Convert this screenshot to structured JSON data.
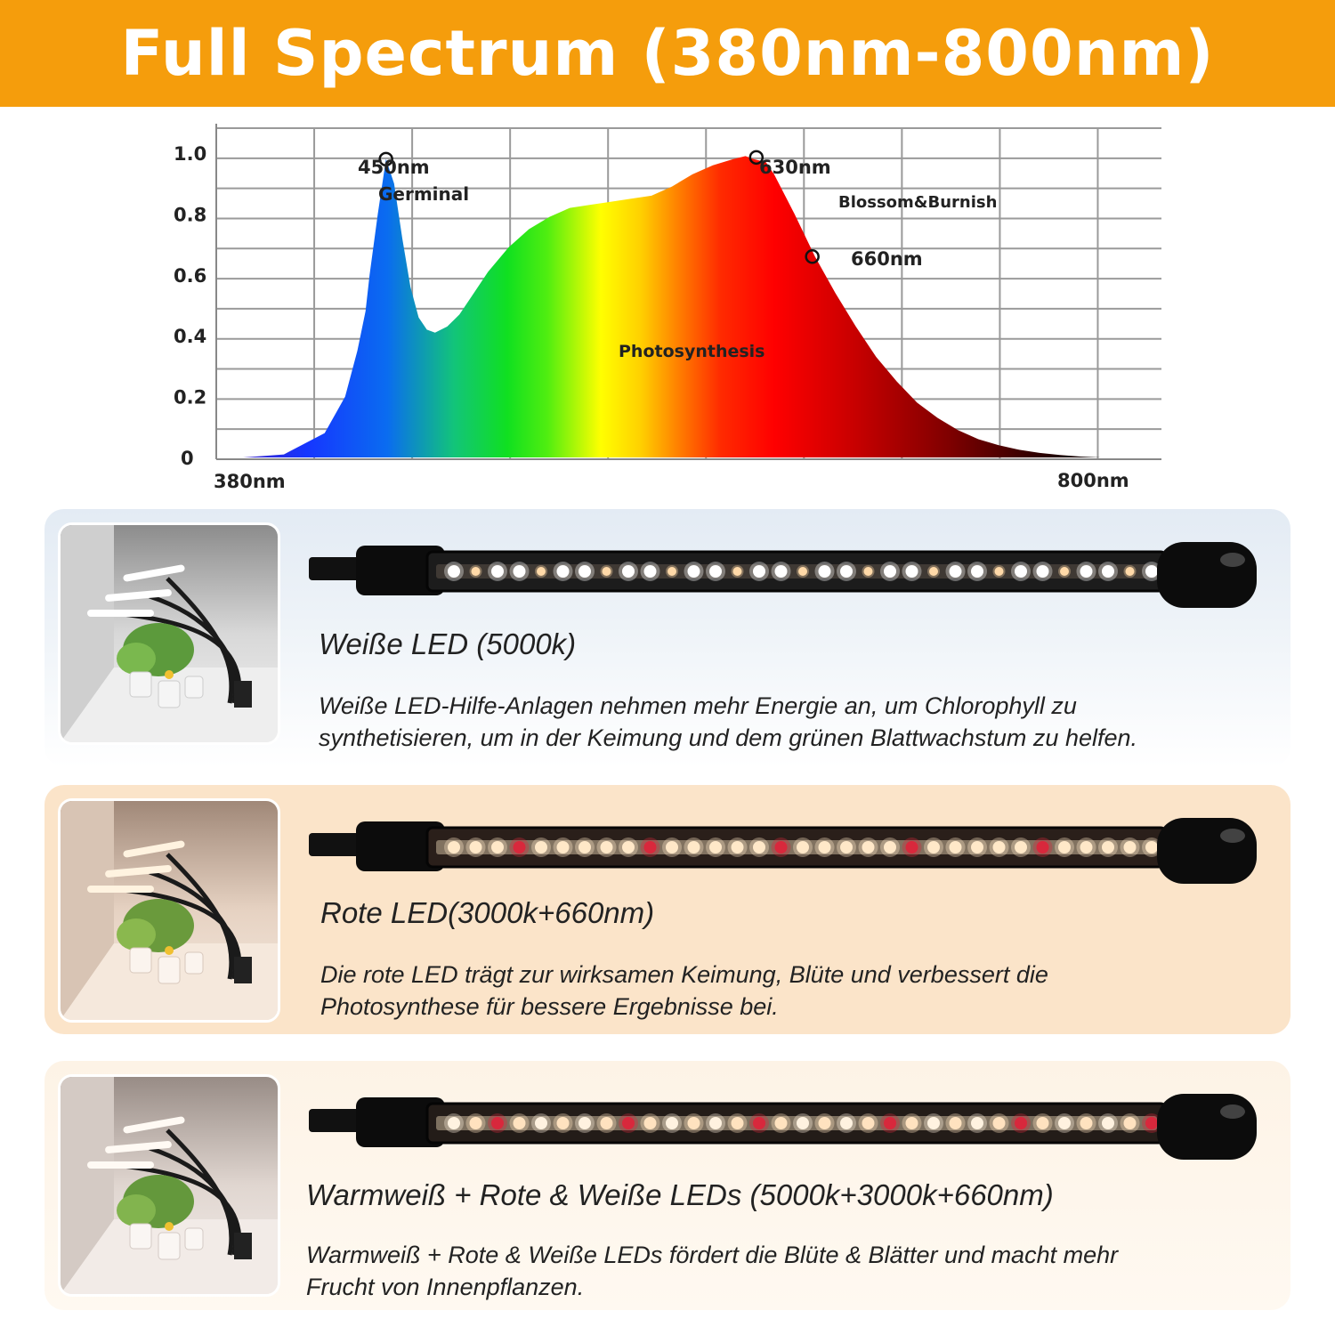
{
  "banner": {
    "title": "Full Spectrum (380nm-800nm)",
    "color": "#f59d0c"
  },
  "chart_data": {
    "type": "area",
    "title": "",
    "xlabel": "",
    "ylabel": "",
    "x_unit": "nm",
    "xlim": [
      380,
      800
    ],
    "ylim": [
      0,
      1.0
    ],
    "grid": true,
    "x_tick_labels": [
      "380nm",
      "800nm"
    ],
    "y_ticks": [
      0,
      0.2,
      0.4,
      0.6,
      0.8,
      1.0
    ],
    "y_tick_labels": [
      "0",
      "0.2",
      "0.4",
      "0.6",
      "0.8",
      "1.0"
    ],
    "series": [
      {
        "x": [
          380,
          400,
          420,
          430,
          436,
          440,
          442,
          446,
          450,
          454,
          458,
          462,
          466,
          470,
          474,
          480,
          486,
          492,
          500,
          510,
          520,
          530,
          540,
          550,
          560,
          570,
          580,
          590,
          600,
          610,
          620,
          626,
          630,
          636,
          640,
          650,
          660,
          670,
          680,
          690,
          700,
          710,
          720,
          730,
          740,
          750,
          760,
          770,
          780,
          790,
          800
        ],
        "y": [
          0.0,
          0.01,
          0.08,
          0.2,
          0.35,
          0.48,
          0.6,
          0.8,
          0.98,
          0.9,
          0.72,
          0.56,
          0.46,
          0.42,
          0.41,
          0.43,
          0.47,
          0.53,
          0.61,
          0.69,
          0.75,
          0.79,
          0.82,
          0.83,
          0.84,
          0.85,
          0.86,
          0.89,
          0.93,
          0.96,
          0.98,
          0.99,
          0.98,
          0.97,
          0.93,
          0.8,
          0.66,
          0.54,
          0.43,
          0.33,
          0.25,
          0.18,
          0.13,
          0.09,
          0.06,
          0.04,
          0.025,
          0.015,
          0.008,
          0.003,
          0.0
        ]
      }
    ],
    "annotations": [
      {
        "x": 450,
        "y": 0.98,
        "label": "450nm",
        "note": "Germinal"
      },
      {
        "x": 630,
        "y": 0.98,
        "label": "630nm",
        "note": "Blossom&Burnish"
      },
      {
        "x": 660,
        "y": 0.66,
        "label": "660nm"
      },
      {
        "label": "Photosynthesis"
      }
    ]
  },
  "panels": [
    {
      "heading": "Weiße LED (5000k)",
      "text_lines": [
        "Weiße LED-Hilfe-Anlagen nehmen mehr Energie an, um Chlorophyll zu",
        "synthetisieren, um in der Keimung und dem grünen Blattwachstum zu helfen."
      ],
      "led_color": "#ffffff",
      "led_warm_color": "#ffd9a8"
    },
    {
      "heading": "Rote LED(3000k+660nm)",
      "text_lines": [
        "Die rote LED trägt zur wirksamen Keimung, Blüte und verbessert die",
        "Photosynthese für bessere Ergebnisse bei."
      ],
      "led_color": "#ffe8c8",
      "led_red_color": "#d8283c"
    },
    {
      "heading": "Warmweiß +  Rote & Weiße LEDs (5000k+3000k+660nm)",
      "text_lines": [
        "Warmweiß + Rote & Weiße LEDs fördert die Blüte & Blätter und macht mehr",
        "Frucht von Innenpflanzen."
      ],
      "led_color": "#fff2e0",
      "led_red_color": "#d8283c"
    }
  ]
}
